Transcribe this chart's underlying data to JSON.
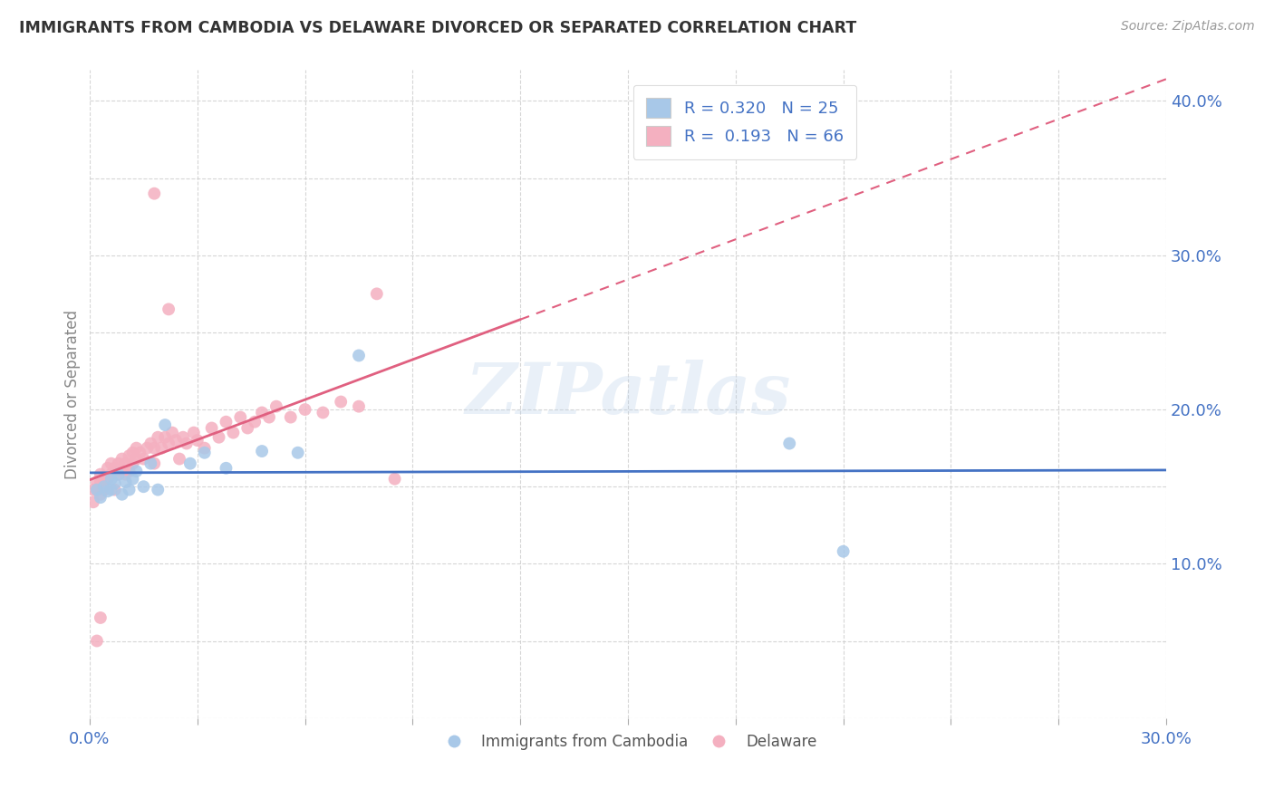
{
  "title": "IMMIGRANTS FROM CAMBODIA VS DELAWARE DIVORCED OR SEPARATED CORRELATION CHART",
  "source_text": "Source: ZipAtlas.com",
  "ylabel": "Divorced or Separated",
  "xlim": [
    0.0,
    0.3
  ],
  "ylim": [
    0.0,
    0.42
  ],
  "legend_blue_label": "Immigrants from Cambodia",
  "legend_pink_label": "Delaware",
  "r_blue": 0.32,
  "n_blue": 25,
  "r_pink": 0.193,
  "n_pink": 66,
  "blue_color": "#a8c8e8",
  "pink_color": "#f4b0c0",
  "blue_line_color": "#4472c4",
  "pink_line_color": "#e06080",
  "watermark": "ZIPatlas",
  "blue_scatter_x": [
    0.002,
    0.003,
    0.004,
    0.005,
    0.006,
    0.006,
    0.007,
    0.008,
    0.009,
    0.01,
    0.011,
    0.012,
    0.013,
    0.015,
    0.017,
    0.019,
    0.021,
    0.028,
    0.032,
    0.038,
    0.048,
    0.058,
    0.075,
    0.195,
    0.21
  ],
  "blue_scatter_y": [
    0.148,
    0.143,
    0.15,
    0.147,
    0.155,
    0.148,
    0.152,
    0.158,
    0.145,
    0.153,
    0.148,
    0.155,
    0.16,
    0.15,
    0.165,
    0.148,
    0.19,
    0.165,
    0.172,
    0.162,
    0.173,
    0.172,
    0.235,
    0.178,
    0.108
  ],
  "pink_scatter_x": [
    0.001,
    0.001,
    0.002,
    0.002,
    0.003,
    0.003,
    0.003,
    0.004,
    0.004,
    0.005,
    0.005,
    0.006,
    0.006,
    0.007,
    0.007,
    0.008,
    0.008,
    0.009,
    0.009,
    0.01,
    0.01,
    0.011,
    0.011,
    0.012,
    0.012,
    0.013,
    0.013,
    0.014,
    0.015,
    0.016,
    0.017,
    0.018,
    0.018,
    0.019,
    0.02,
    0.021,
    0.022,
    0.023,
    0.024,
    0.025,
    0.026,
    0.027,
    0.029,
    0.03,
    0.032,
    0.034,
    0.036,
    0.038,
    0.04,
    0.042,
    0.044,
    0.046,
    0.048,
    0.05,
    0.052,
    0.056,
    0.06,
    0.065,
    0.07,
    0.075,
    0.018,
    0.022,
    0.08,
    0.085,
    0.002,
    0.003
  ],
  "pink_scatter_y": [
    0.148,
    0.14,
    0.153,
    0.148,
    0.153,
    0.158,
    0.145,
    0.155,
    0.148,
    0.162,
    0.155,
    0.165,
    0.158,
    0.162,
    0.148,
    0.158,
    0.165,
    0.168,
    0.16,
    0.158,
    0.165,
    0.16,
    0.17,
    0.165,
    0.172,
    0.168,
    0.175,
    0.172,
    0.168,
    0.175,
    0.178,
    0.165,
    0.175,
    0.182,
    0.175,
    0.182,
    0.178,
    0.185,
    0.18,
    0.168,
    0.182,
    0.178,
    0.185,
    0.18,
    0.175,
    0.188,
    0.182,
    0.192,
    0.185,
    0.195,
    0.188,
    0.192,
    0.198,
    0.195,
    0.202,
    0.195,
    0.2,
    0.198,
    0.205,
    0.202,
    0.34,
    0.265,
    0.275,
    0.155,
    0.05,
    0.065
  ]
}
